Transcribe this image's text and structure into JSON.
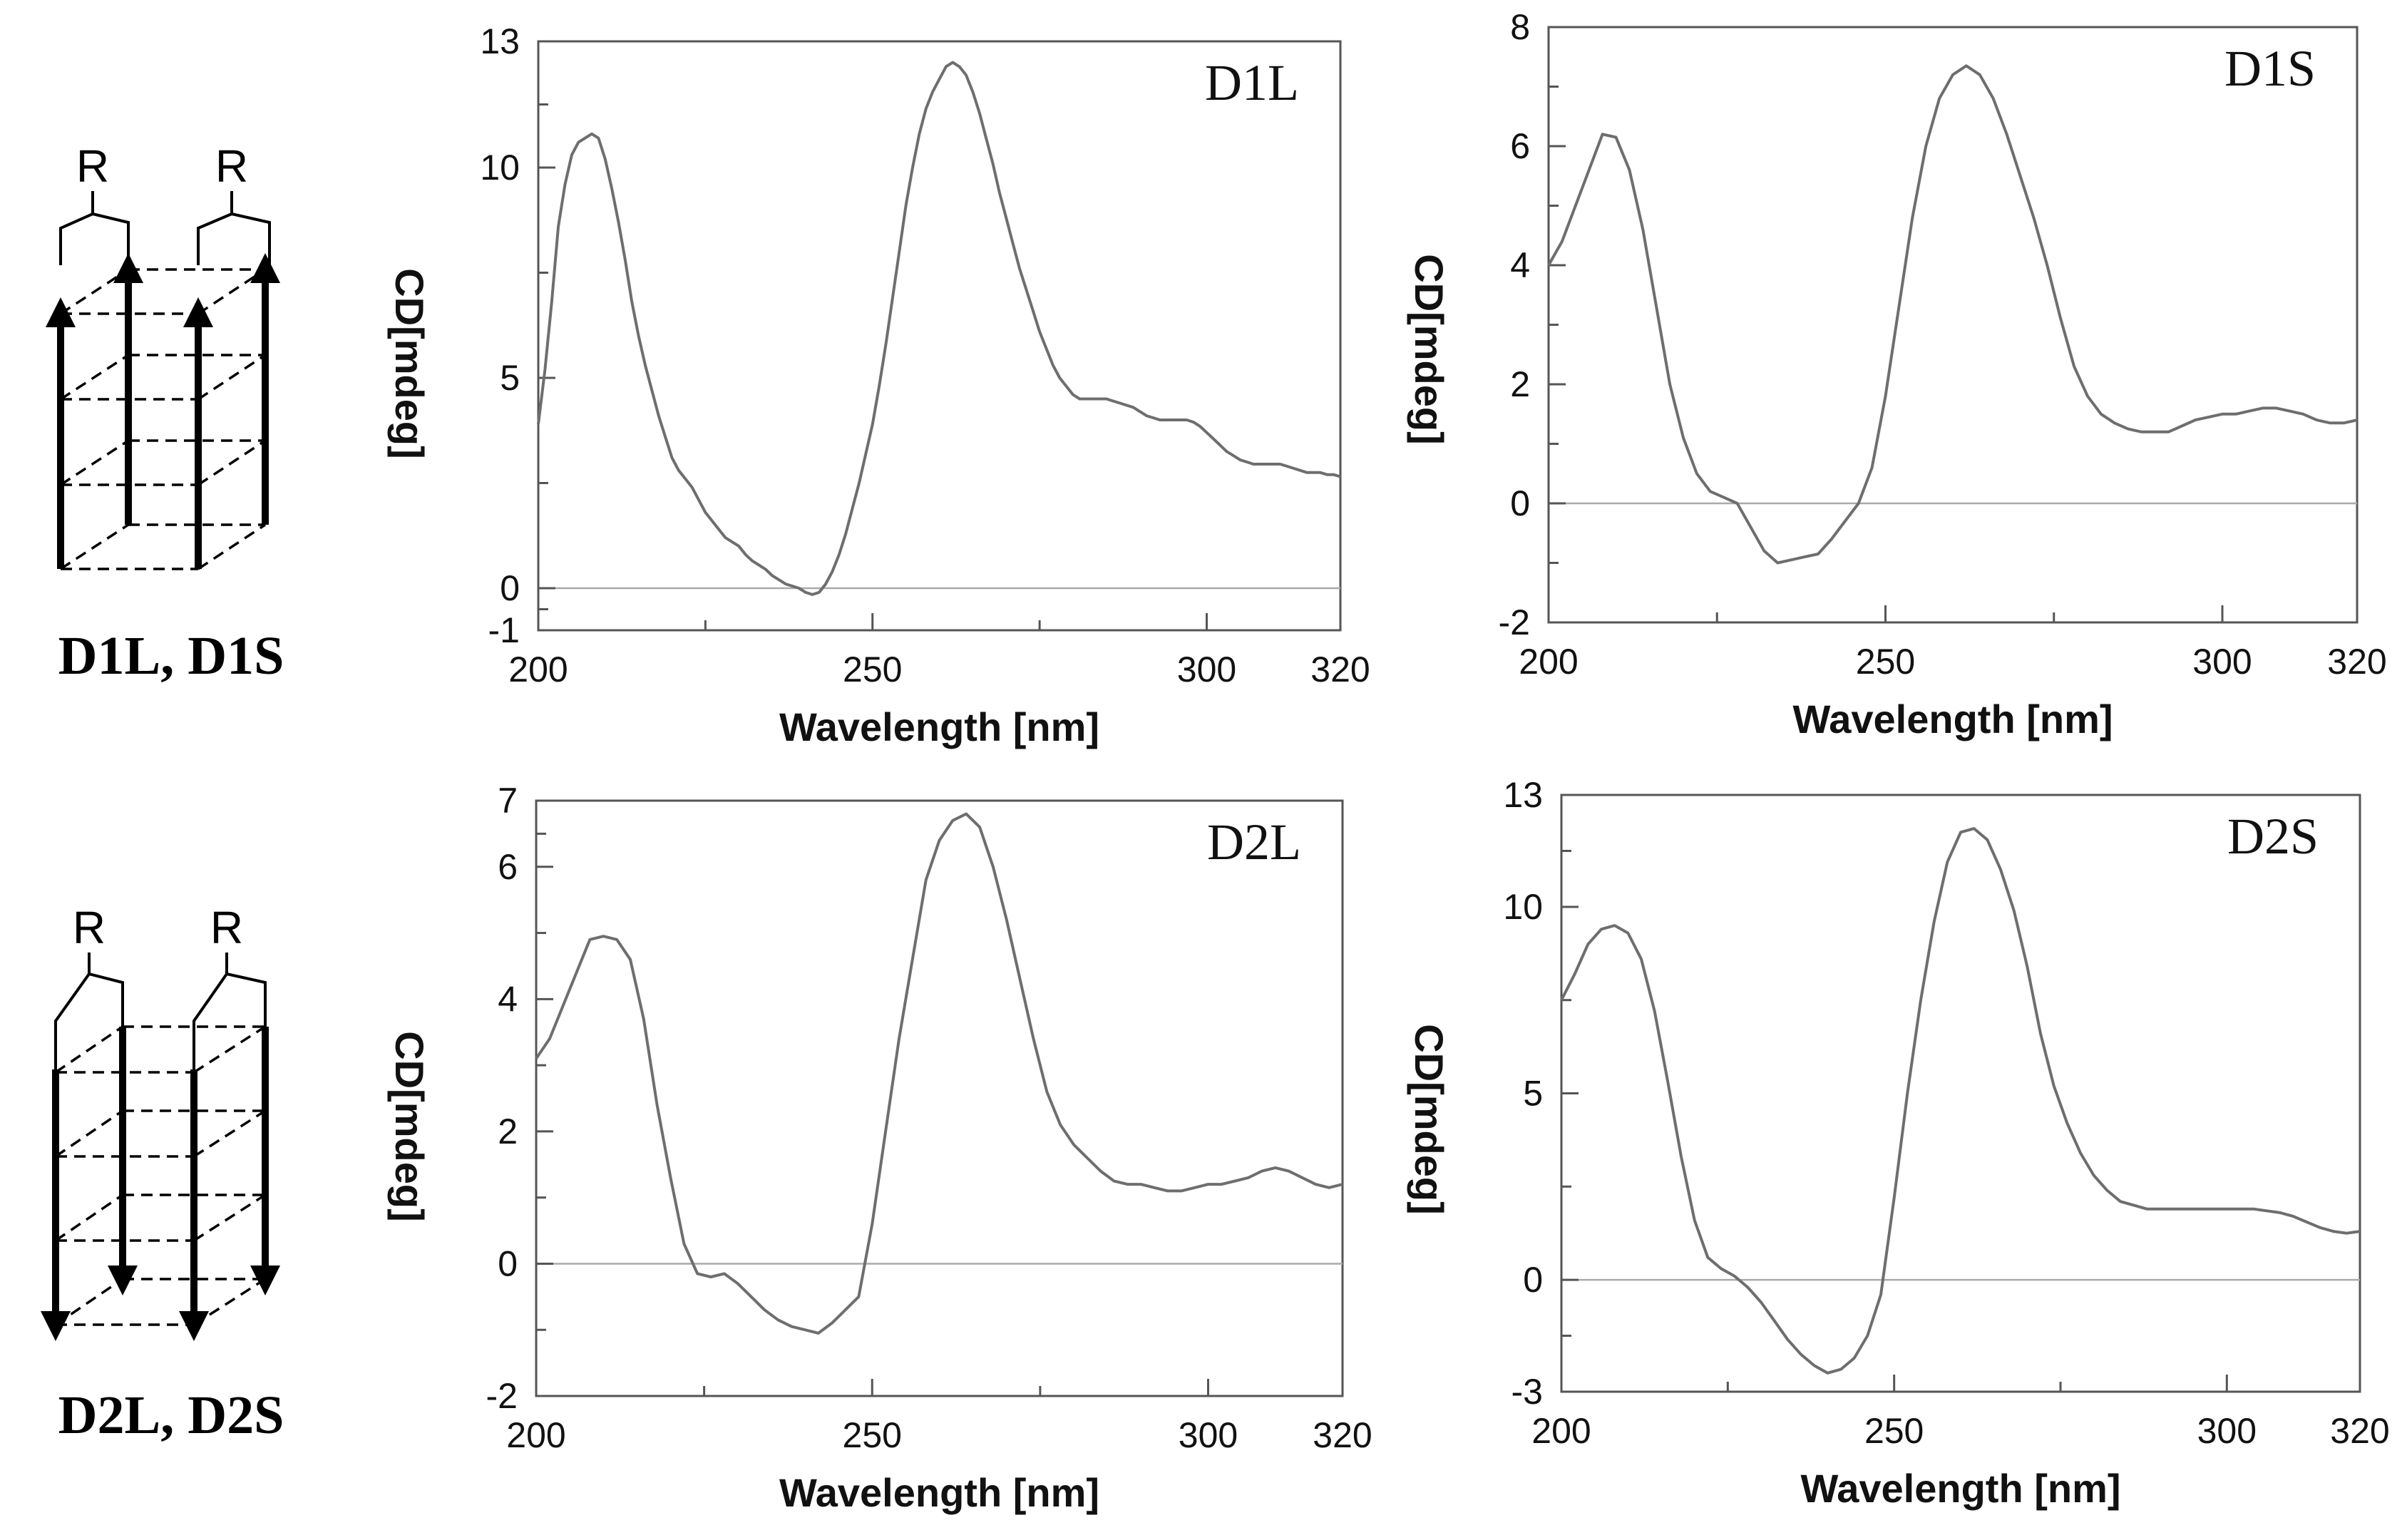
{
  "figure": {
    "scheme_top_label": "D1L, D1S",
    "scheme_bottom_label": "D2L, D2S",
    "scheme_r_label": "R"
  },
  "chart_data": [
    {
      "id": "D1L",
      "type": "line",
      "title": "D1L",
      "xlabel": "Wavelength [nm]",
      "ylabel": "CD[mdeg]",
      "xlim": [
        200,
        320
      ],
      "ylim": [
        -1,
        13
      ],
      "xticks": [
        200,
        250,
        300,
        320
      ],
      "yticks": [
        -1,
        0,
        5,
        10,
        13
      ],
      "zero_line": true,
      "series": [
        {
          "name": "D1L",
          "x": [
            200,
            201,
            202,
            203,
            204,
            205,
            206,
            207,
            208,
            209,
            210,
            211,
            212,
            213,
            214,
            215,
            216,
            217,
            218,
            219,
            220,
            221,
            222,
            223,
            224,
            225,
            226,
            227,
            228,
            229,
            230,
            231,
            232,
            233,
            234,
            235,
            236,
            237,
            238,
            239,
            240,
            241,
            242,
            243,
            244,
            245,
            246,
            247,
            248,
            249,
            250,
            251,
            252,
            253,
            254,
            255,
            256,
            257,
            258,
            259,
            260,
            261,
            262,
            263,
            264,
            265,
            266,
            267,
            268,
            269,
            270,
            271,
            272,
            273,
            274,
            275,
            276,
            277,
            278,
            279,
            280,
            281,
            282,
            283,
            284,
            285,
            286,
            287,
            288,
            289,
            290,
            291,
            292,
            293,
            294,
            295,
            296,
            297,
            298,
            299,
            300,
            301,
            302,
            303,
            304,
            305,
            306,
            307,
            308,
            309,
            310,
            311,
            312,
            313,
            314,
            315,
            316,
            317,
            318,
            319,
            320
          ],
          "y": [
            3.9,
            5.2,
            6.8,
            8.6,
            9.6,
            10.3,
            10.6,
            10.7,
            10.8,
            10.7,
            10.2,
            9.5,
            8.7,
            7.8,
            6.8,
            6.0,
            5.3,
            4.7,
            4.1,
            3.6,
            3.1,
            2.8,
            2.6,
            2.4,
            2.1,
            1.8,
            1.6,
            1.4,
            1.2,
            1.1,
            1.0,
            0.8,
            0.65,
            0.55,
            0.45,
            0.3,
            0.2,
            0.1,
            0.05,
            0.0,
            -0.1,
            -0.15,
            -0.1,
            0.1,
            0.4,
            0.8,
            1.3,
            1.9,
            2.5,
            3.2,
            3.9,
            4.8,
            5.8,
            6.9,
            8.0,
            9.1,
            10.0,
            10.8,
            11.4,
            11.8,
            12.1,
            12.4,
            12.5,
            12.4,
            12.2,
            11.8,
            11.3,
            10.7,
            10.1,
            9.4,
            8.8,
            8.2,
            7.6,
            7.1,
            6.6,
            6.1,
            5.7,
            5.3,
            5.0,
            4.8,
            4.6,
            4.5,
            4.5,
            4.5,
            4.5,
            4.5,
            4.45,
            4.4,
            4.35,
            4.3,
            4.2,
            4.1,
            4.05,
            4.0,
            4.0,
            4.0,
            4.0,
            4.0,
            3.95,
            3.85,
            3.7,
            3.55,
            3.4,
            3.25,
            3.15,
            3.05,
            3.0,
            2.95,
            2.95,
            2.95,
            2.95,
            2.95,
            2.9,
            2.85,
            2.8,
            2.75,
            2.75,
            2.75,
            2.7,
            2.7,
            2.65
          ]
        }
      ]
    },
    {
      "id": "D1S",
      "type": "line",
      "title": "D1S",
      "xlabel": "Wavelength [nm]",
      "ylabel": "CD[mdeg]",
      "xlim": [
        200,
        320
      ],
      "ylim": [
        -2,
        8
      ],
      "xticks": [
        200,
        250,
        300,
        320
      ],
      "yticks": [
        -2,
        0,
        2,
        4,
        6,
        8
      ],
      "zero_line": true,
      "series": [
        {
          "name": "D1S",
          "x": [
            200,
            202,
            204,
            206,
            208,
            210,
            212,
            214,
            216,
            218,
            220,
            222,
            224,
            226,
            228,
            230,
            232,
            234,
            236,
            238,
            240,
            242,
            244,
            246,
            248,
            250,
            252,
            254,
            256,
            258,
            260,
            262,
            264,
            266,
            268,
            270,
            272,
            274,
            276,
            278,
            280,
            282,
            284,
            286,
            288,
            290,
            292,
            294,
            296,
            298,
            300,
            302,
            304,
            306,
            308,
            310,
            312,
            314,
            316,
            318,
            320
          ],
          "y": [
            4.0,
            4.4,
            5.0,
            5.6,
            6.2,
            6.15,
            5.6,
            4.6,
            3.3,
            2.0,
            1.1,
            0.5,
            0.2,
            0.1,
            0.0,
            -0.4,
            -0.8,
            -1.0,
            -0.95,
            -0.9,
            -0.85,
            -0.6,
            -0.3,
            0.0,
            0.6,
            1.8,
            3.3,
            4.8,
            6.0,
            6.8,
            7.2,
            7.35,
            7.2,
            6.8,
            6.2,
            5.5,
            4.8,
            4.0,
            3.1,
            2.3,
            1.8,
            1.5,
            1.35,
            1.25,
            1.2,
            1.2,
            1.2,
            1.3,
            1.4,
            1.45,
            1.5,
            1.5,
            1.55,
            1.6,
            1.6,
            1.55,
            1.5,
            1.4,
            1.35,
            1.35,
            1.4
          ]
        }
      ]
    },
    {
      "id": "D2L",
      "type": "line",
      "title": "D2L",
      "xlabel": "Wavelength [nm]",
      "ylabel": "CD[mdeg]",
      "xlim": [
        200,
        320
      ],
      "ylim": [
        -2,
        7
      ],
      "xticks": [
        200,
        250,
        300,
        320
      ],
      "yticks": [
        -2,
        0,
        2,
        4,
        6,
        7
      ],
      "zero_line": true,
      "series": [
        {
          "name": "D2L",
          "x": [
            200,
            202,
            204,
            206,
            208,
            210,
            212,
            214,
            216,
            218,
            220,
            222,
            224,
            226,
            228,
            230,
            232,
            234,
            236,
            238,
            240,
            242,
            244,
            246,
            248,
            250,
            252,
            254,
            256,
            258,
            260,
            262,
            264,
            266,
            268,
            270,
            272,
            274,
            276,
            278,
            280,
            282,
            284,
            286,
            288,
            290,
            292,
            294,
            296,
            298,
            300,
            302,
            304,
            306,
            308,
            310,
            312,
            314,
            316,
            318,
            320
          ],
          "y": [
            3.1,
            3.4,
            3.9,
            4.4,
            4.9,
            4.95,
            4.9,
            4.6,
            3.7,
            2.4,
            1.3,
            0.3,
            -0.15,
            -0.2,
            -0.15,
            -0.3,
            -0.5,
            -0.7,
            -0.85,
            -0.95,
            -1.0,
            -1.05,
            -0.9,
            -0.7,
            -0.5,
            0.6,
            2.0,
            3.4,
            4.6,
            5.8,
            6.4,
            6.7,
            6.8,
            6.6,
            6.0,
            5.2,
            4.3,
            3.4,
            2.6,
            2.1,
            1.8,
            1.6,
            1.4,
            1.25,
            1.2,
            1.2,
            1.15,
            1.1,
            1.1,
            1.15,
            1.2,
            1.2,
            1.25,
            1.3,
            1.4,
            1.45,
            1.4,
            1.3,
            1.2,
            1.15,
            1.2
          ]
        }
      ]
    },
    {
      "id": "D2S",
      "type": "line",
      "title": "D2S",
      "xlabel": "Wavelength [nm]",
      "ylabel": "CD[mdeg]",
      "xlim": [
        200,
        320
      ],
      "ylim": [
        -3,
        13
      ],
      "xticks": [
        200,
        250,
        300,
        320
      ],
      "yticks": [
        -3,
        0,
        5,
        10,
        13
      ],
      "zero_line": true,
      "series": [
        {
          "name": "D2S",
          "x": [
            200,
            202,
            204,
            206,
            208,
            210,
            212,
            214,
            216,
            218,
            220,
            222,
            224,
            226,
            228,
            230,
            232,
            234,
            236,
            238,
            240,
            242,
            244,
            246,
            248,
            250,
            252,
            254,
            256,
            258,
            260,
            262,
            264,
            266,
            268,
            270,
            272,
            274,
            276,
            278,
            280,
            282,
            284,
            286,
            288,
            290,
            292,
            294,
            296,
            298,
            300,
            302,
            304,
            306,
            308,
            310,
            312,
            314,
            316,
            318,
            320
          ],
          "y": [
            7.5,
            8.2,
            9.0,
            9.4,
            9.5,
            9.3,
            8.6,
            7.2,
            5.3,
            3.3,
            1.6,
            0.6,
            0.3,
            0.1,
            -0.2,
            -0.6,
            -1.1,
            -1.6,
            -2.0,
            -2.3,
            -2.5,
            -2.4,
            -2.1,
            -1.5,
            -0.4,
            2.2,
            5.0,
            7.5,
            9.6,
            11.2,
            12.0,
            12.1,
            11.8,
            11.0,
            9.9,
            8.4,
            6.6,
            5.2,
            4.2,
            3.4,
            2.8,
            2.4,
            2.1,
            2.0,
            1.9,
            1.9,
            1.9,
            1.9,
            1.9,
            1.9,
            1.9,
            1.9,
            1.9,
            1.85,
            1.8,
            1.7,
            1.55,
            1.4,
            1.3,
            1.25,
            1.3
          ]
        }
      ]
    }
  ]
}
